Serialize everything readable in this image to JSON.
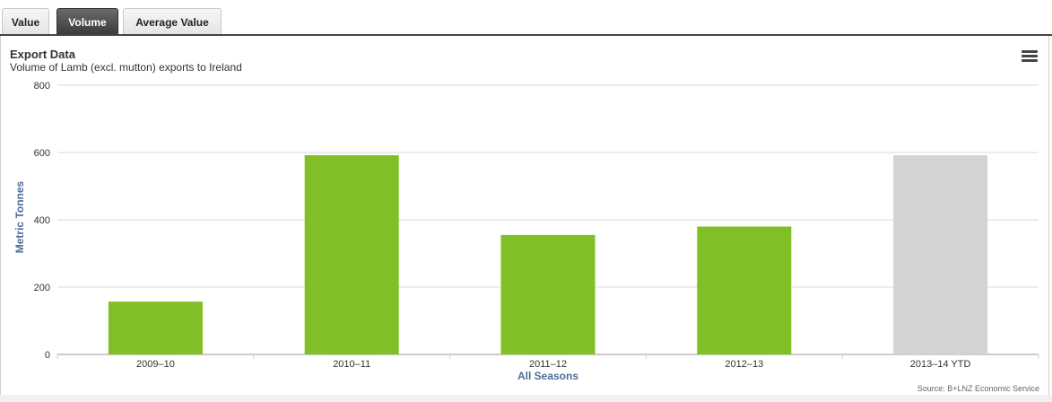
{
  "tabs": [
    {
      "label": "Value",
      "active": false
    },
    {
      "label": "Volume",
      "active": true
    },
    {
      "label": "Average Value",
      "active": false
    }
  ],
  "menu_icon": "hamburger-menu-icon",
  "colors": {
    "bar": "#80c026",
    "bar_ytd": "#d3d3d3",
    "axis_title": "#4d6d99",
    "grid": "#d8d8d8"
  },
  "chart_data": {
    "type": "bar",
    "title": "Export Data",
    "subtitle": "Volume of Lamb (excl. mutton) exports to Ireland",
    "xlabel": "All Seasons",
    "ylabel": "Metric Tonnes",
    "categories": [
      "2009–10",
      "2010–11",
      "2011–12",
      "2012–13",
      "2013–14 YTD"
    ],
    "values": [
      157,
      592,
      355,
      380,
      592
    ],
    "ylim": [
      0,
      800
    ],
    "yticks": [
      0,
      200,
      400,
      600,
      800
    ],
    "grid": true,
    "legend": "none",
    "source": "Source: B+LNZ Economic Service"
  }
}
